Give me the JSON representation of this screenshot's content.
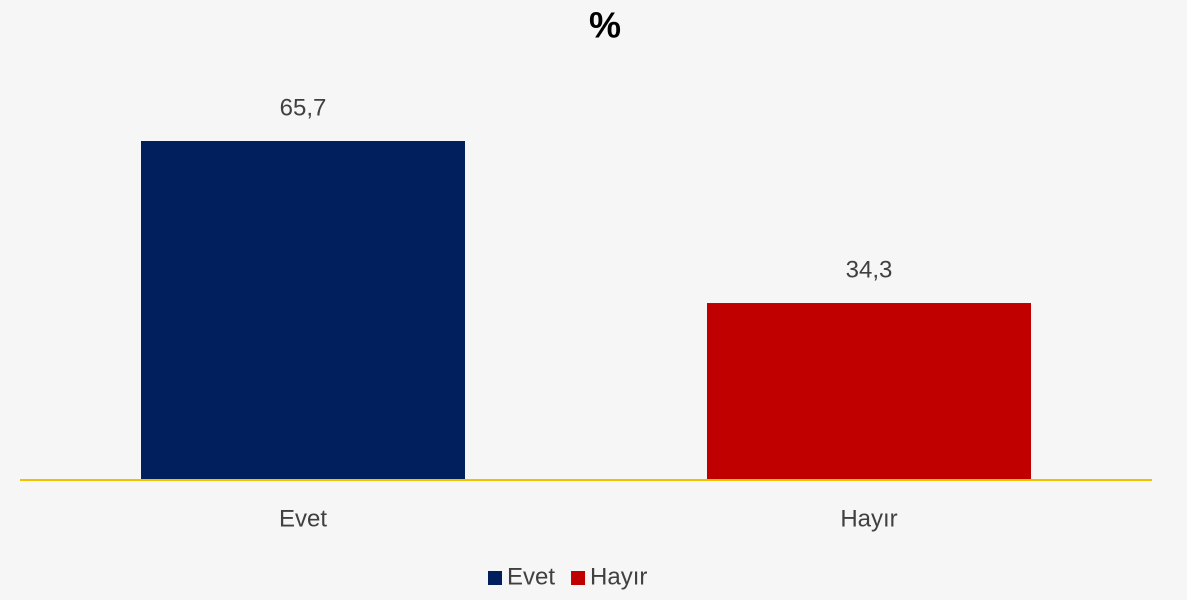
{
  "chart_data": {
    "type": "bar",
    "title": "%",
    "categories": [
      "Evet",
      "Hayır"
    ],
    "values": [
      65.7,
      34.3
    ],
    "value_labels": [
      "65,7",
      "34,3"
    ],
    "colors": [
      "#001f5c",
      "#c00000"
    ],
    "legend": "bottom"
  }
}
